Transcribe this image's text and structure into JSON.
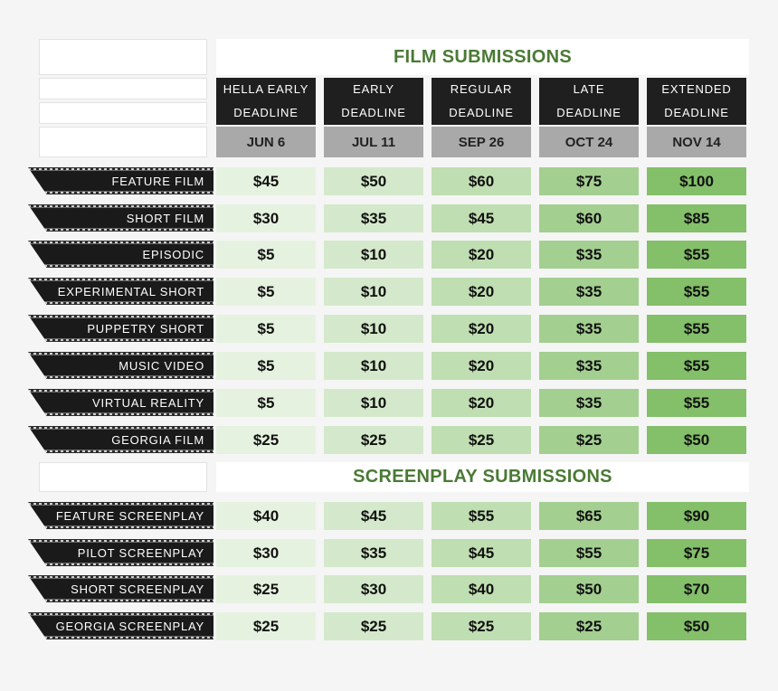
{
  "colors": {
    "heading_green": "#4a7a35",
    "header_black": "#1f1f1f",
    "date_gray": "#a9a9a9",
    "price_tints": [
      "#e6f2e0",
      "#d4e9cb",
      "#bfdeb1",
      "#a3cf90",
      "#84bf69"
    ]
  },
  "film_title": "FILM SUBMISSIONS",
  "screenplay_title": "SCREENPLAY SUBMISSIONS",
  "deadlines": [
    {
      "line1": "HELLA EARLY",
      "line2": "DEADLINE",
      "date": "JUN 6"
    },
    {
      "line1": "EARLY",
      "line2": "DEADLINE",
      "date": "JUL 11"
    },
    {
      "line1": "REGULAR",
      "line2": "DEADLINE",
      "date": "SEP 26"
    },
    {
      "line1": "LATE",
      "line2": "DEADLINE",
      "date": "OCT 24"
    },
    {
      "line1": "EXTENDED",
      "line2": "DEADLINE",
      "date": "NOV 14"
    }
  ],
  "film_rows": [
    {
      "label": "FEATURE FILM",
      "prices": [
        "$45",
        "$50",
        "$60",
        "$75",
        "$100"
      ]
    },
    {
      "label": "SHORT FILM",
      "prices": [
        "$30",
        "$35",
        "$45",
        "$60",
        "$85"
      ]
    },
    {
      "label": "EPISODIC",
      "prices": [
        "$5",
        "$10",
        "$20",
        "$35",
        "$55"
      ]
    },
    {
      "label": "EXPERIMENTAL SHORT",
      "prices": [
        "$5",
        "$10",
        "$20",
        "$35",
        "$55"
      ]
    },
    {
      "label": "PUPPETRY SHORT",
      "prices": [
        "$5",
        "$10",
        "$20",
        "$35",
        "$55"
      ]
    },
    {
      "label": "MUSIC VIDEO",
      "prices": [
        "$5",
        "$10",
        "$20",
        "$35",
        "$55"
      ]
    },
    {
      "label": "VIRTUAL REALITY",
      "prices": [
        "$5",
        "$10",
        "$20",
        "$35",
        "$55"
      ]
    },
    {
      "label": "GEORGIA FILM",
      "prices": [
        "$25",
        "$25",
        "$25",
        "$25",
        "$50"
      ]
    }
  ],
  "screenplay_rows": [
    {
      "label": "FEATURE SCREENPLAY",
      "prices": [
        "$40",
        "$45",
        "$55",
        "$65",
        "$90"
      ]
    },
    {
      "label": "PILOT SCREENPLAY",
      "prices": [
        "$30",
        "$35",
        "$45",
        "$55",
        "$75"
      ]
    },
    {
      "label": "SHORT SCREENPLAY",
      "prices": [
        "$25",
        "$30",
        "$40",
        "$50",
        "$70"
      ]
    },
    {
      "label": "GEORGIA SCREENPLAY",
      "prices": [
        "$25",
        "$25",
        "$25",
        "$25",
        "$50"
      ]
    }
  ]
}
